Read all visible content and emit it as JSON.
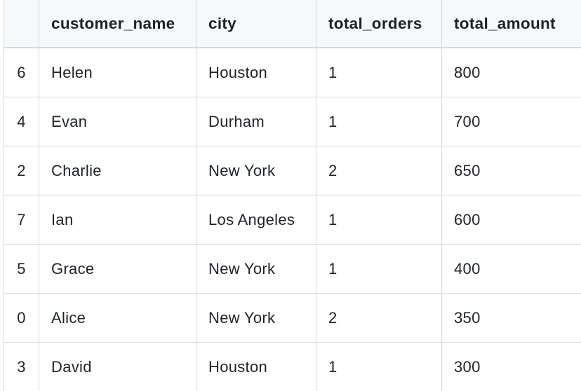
{
  "table": {
    "columns": [
      "",
      "customer_name",
      "city",
      "total_orders",
      "total_amount"
    ],
    "rows": [
      {
        "index": "6",
        "customer_name": "Helen",
        "city": "Houston",
        "total_orders": "1",
        "total_amount": "800"
      },
      {
        "index": "4",
        "customer_name": "Evan",
        "city": "Durham",
        "total_orders": "1",
        "total_amount": "700"
      },
      {
        "index": "2",
        "customer_name": "Charlie",
        "city": "New York",
        "total_orders": "2",
        "total_amount": "650"
      },
      {
        "index": "7",
        "customer_name": "Ian",
        "city": "Los Angeles",
        "total_orders": "1",
        "total_amount": "600"
      },
      {
        "index": "5",
        "customer_name": "Grace",
        "city": "New York",
        "total_orders": "1",
        "total_amount": "400"
      },
      {
        "index": "0",
        "customer_name": "Alice",
        "city": "New York",
        "total_orders": "2",
        "total_amount": "350"
      },
      {
        "index": "3",
        "customer_name": "David",
        "city": "Houston",
        "total_orders": "1",
        "total_amount": "300"
      }
    ]
  }
}
